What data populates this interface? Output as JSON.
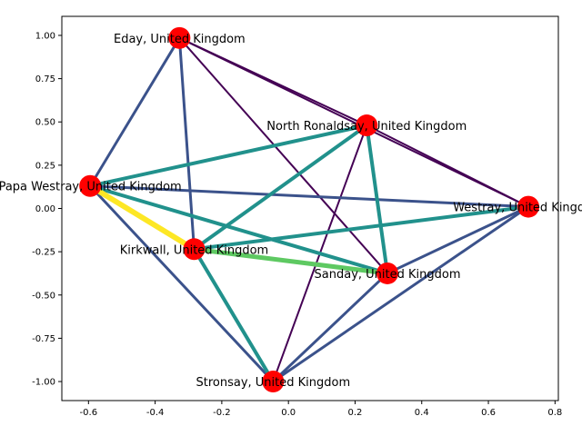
{
  "chart_data": {
    "type": "network-graph",
    "xlim": [
      -0.68,
      0.81
    ],
    "ylim": [
      -1.11,
      1.11
    ],
    "x_ticks": [
      "-0.6",
      "-0.4",
      "-0.2",
      "0.0",
      "0.2",
      "0.4",
      "0.6",
      "0.8"
    ],
    "y_ticks": [
      "-1.00",
      "-0.75",
      "-0.50",
      "-0.25",
      "0.00",
      "0.25",
      "0.50",
      "0.75",
      "1.00"
    ],
    "grid": false,
    "node_color": "#ff0000",
    "nodes": [
      {
        "id": "eday",
        "label": "Eday, United Kingdom",
        "x": -0.327,
        "y": 0.985
      },
      {
        "id": "north_ronaldsay",
        "label": "North Ronaldsay, United Kingdom",
        "x": 0.235,
        "y": 0.48
      },
      {
        "id": "papa",
        "label": "Papa Westray, United Kingdom",
        "x": -0.595,
        "y": 0.13
      },
      {
        "id": "westray",
        "label": "Westray, United Kingdom",
        "x": 0.72,
        "y": 0.01
      },
      {
        "id": "kirkwall",
        "label": "Kirkwall, United Kingdom",
        "x": -0.283,
        "y": -0.235
      },
      {
        "id": "sanday",
        "label": "Sanday, United Kingdom",
        "x": 0.297,
        "y": -0.375
      },
      {
        "id": "stronsay",
        "label": "Stronsay, United Kingdom",
        "x": -0.046,
        "y": -1.0
      }
    ],
    "edges": [
      {
        "source": "papa",
        "target": "kirkwall",
        "weight": 6,
        "color": "#fde725"
      },
      {
        "source": "kirkwall",
        "target": "sanday",
        "weight": 5,
        "color": "#5ec962"
      },
      {
        "source": "papa",
        "target": "north_ronaldsay",
        "weight": 4,
        "color": "#21918c"
      },
      {
        "source": "papa",
        "target": "sanday",
        "weight": 4,
        "color": "#21918c"
      },
      {
        "source": "kirkwall",
        "target": "north_ronaldsay",
        "weight": 4,
        "color": "#21918c"
      },
      {
        "source": "kirkwall",
        "target": "westray",
        "weight": 4,
        "color": "#21918c"
      },
      {
        "source": "kirkwall",
        "target": "stronsay",
        "weight": 4,
        "color": "#21918c"
      },
      {
        "source": "north_ronaldsay",
        "target": "sanday",
        "weight": 4,
        "color": "#21918c"
      },
      {
        "source": "papa",
        "target": "eday",
        "weight": 3,
        "color": "#3b528b"
      },
      {
        "source": "papa",
        "target": "westray",
        "weight": 3,
        "color": "#3b528b"
      },
      {
        "source": "papa",
        "target": "stronsay",
        "weight": 3,
        "color": "#3b528b"
      },
      {
        "source": "eday",
        "target": "kirkwall",
        "weight": 3,
        "color": "#3b528b"
      },
      {
        "source": "westray",
        "target": "sanday",
        "weight": 3,
        "color": "#3b528b"
      },
      {
        "source": "westray",
        "target": "stronsay",
        "weight": 3,
        "color": "#3b528b"
      },
      {
        "source": "sanday",
        "target": "stronsay",
        "weight": 3,
        "color": "#3b528b"
      },
      {
        "source": "eday",
        "target": "north_ronaldsay",
        "weight": 2,
        "color": "#440154"
      },
      {
        "source": "eday",
        "target": "westray",
        "weight": 2,
        "color": "#440154"
      },
      {
        "source": "eday",
        "target": "sanday",
        "weight": 2,
        "color": "#440154"
      },
      {
        "source": "north_ronaldsay",
        "target": "westray",
        "weight": 2,
        "color": "#440154"
      },
      {
        "source": "north_ronaldsay",
        "target": "stronsay",
        "weight": 2,
        "color": "#440154"
      }
    ]
  }
}
